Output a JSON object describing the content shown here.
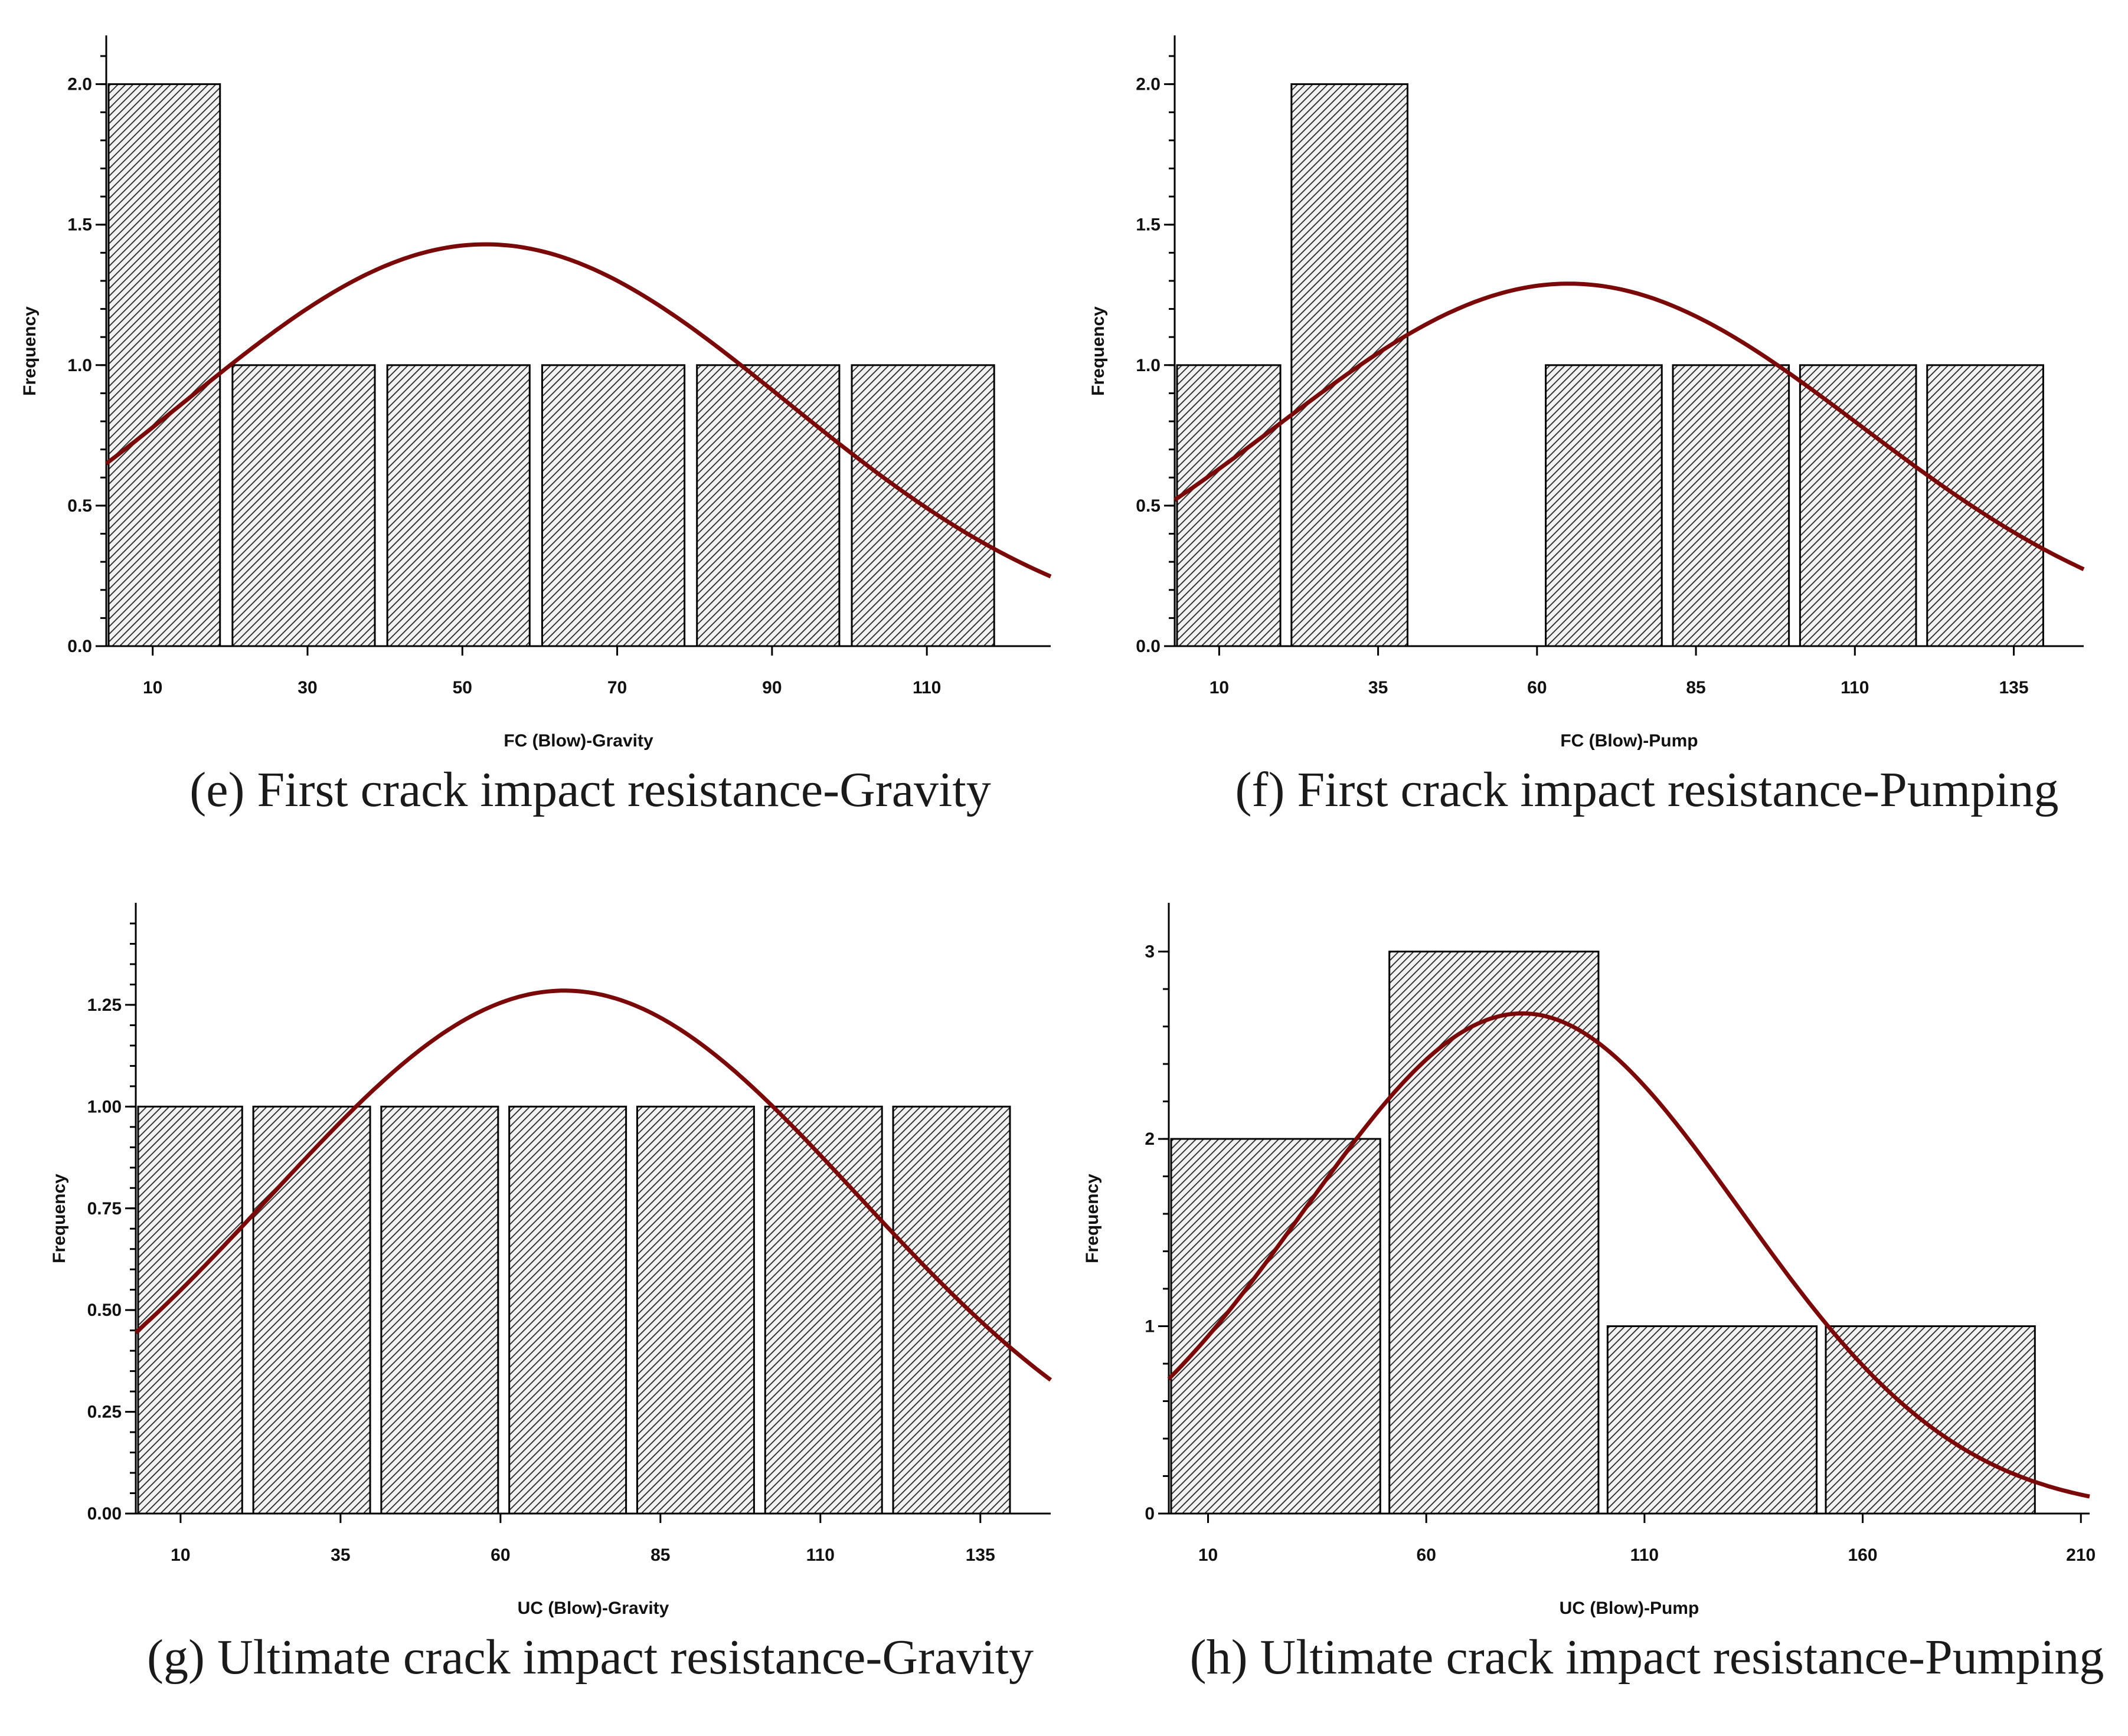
{
  "chart_data": [
    {
      "id": "e",
      "type": "bar",
      "caption": "(e) First crack impact resistance-Gravity",
      "xlabel": "FC (Blow)-Gravity",
      "ylabel": "Frequency",
      "xlim": [
        4,
        126
      ],
      "ylim": [
        0,
        2.1
      ],
      "xticks": [
        10,
        30,
        50,
        70,
        90,
        110
      ],
      "xtick_labels": [
        "10",
        "30",
        "50",
        "70",
        "90",
        "110"
      ],
      "yticks": [
        0,
        0.5,
        1,
        1.5,
        2
      ],
      "ytick_labels": [
        "0.0",
        "0.5",
        "1.0",
        "1.5",
        "2.0"
      ],
      "bins": [
        [
          4,
          19,
          2
        ],
        [
          20,
          39,
          1
        ],
        [
          40,
          59,
          1
        ],
        [
          60,
          79,
          1
        ],
        [
          80,
          99,
          1
        ],
        [
          100,
          119,
          1
        ]
      ],
      "curve": {
        "mean": 53,
        "sd": 39,
        "peak": 1.43
      }
    },
    {
      "id": "f",
      "type": "bar",
      "caption": "(f) First crack impact resistance-Pumping",
      "xlabel": "FC (Blow)-Pump",
      "ylabel": "Frequency",
      "xlim": [
        3,
        146
      ],
      "ylim": [
        0,
        2.1
      ],
      "xticks": [
        10,
        35,
        60,
        85,
        110,
        135
      ],
      "xtick_labels": [
        "10",
        "35",
        "60",
        "85",
        "110",
        "135"
      ],
      "yticks": [
        0,
        0.5,
        1,
        1.5,
        2
      ],
      "ytick_labels": [
        "0.0",
        "0.5",
        "1.0",
        "1.5",
        "2.0"
      ],
      "bins": [
        [
          3,
          20,
          1
        ],
        [
          21,
          40,
          2
        ],
        [
          61,
          80,
          1
        ],
        [
          81,
          100,
          1
        ],
        [
          101,
          120,
          1
        ],
        [
          121,
          140,
          1
        ]
      ],
      "curve": {
        "mean": 65,
        "sd": 46,
        "peak": 1.29
      }
    },
    {
      "id": "g",
      "type": "bar",
      "caption": "(g) Ultimate crack impact resistance-Gravity",
      "xlabel": "UC (Blow)-Gravity",
      "ylabel": "Frequency",
      "xlim": [
        3,
        146
      ],
      "ylim": [
        0,
        1.45
      ],
      "xticks": [
        10,
        35,
        60,
        85,
        110,
        135
      ],
      "xtick_labels": [
        "10",
        "35",
        "60",
        "85",
        "110",
        "135"
      ],
      "yticks": [
        0,
        0.25,
        0.5,
        0.75,
        1,
        1.25
      ],
      "ytick_labels": [
        "0.00",
        "0.25",
        "0.50",
        "0.75",
        "1.00",
        "1.25"
      ],
      "bins": [
        [
          3,
          20,
          1
        ],
        [
          21,
          40,
          1
        ],
        [
          41,
          60,
          1
        ],
        [
          61,
          80,
          1
        ],
        [
          81,
          100,
          1
        ],
        [
          101,
          120,
          1
        ],
        [
          121,
          140,
          1
        ]
      ],
      "curve": {
        "mean": 70,
        "sd": 46,
        "peak": 1.285
      }
    },
    {
      "id": "h",
      "type": "bar",
      "caption": "(h) Ultimate crack impact resistance-Pumping",
      "xlabel": "UC (Blow)-Pump",
      "ylabel": "Frequency",
      "xlim": [
        1,
        212
      ],
      "ylim": [
        0,
        3.15
      ],
      "xticks": [
        10,
        60,
        110,
        160,
        210
      ],
      "xtick_labels": [
        "10",
        "60",
        "110",
        "160",
        "210"
      ],
      "yticks": [
        0,
        1,
        2,
        3
      ],
      "ytick_labels": [
        "0",
        "1",
        "2",
        "3"
      ],
      "bins": [
        [
          1,
          50,
          2
        ],
        [
          51,
          100,
          3
        ],
        [
          101,
          150,
          1
        ],
        [
          151,
          200,
          1
        ]
      ],
      "curve": {
        "mean": 82,
        "sd": 50,
        "peak": 2.67
      }
    }
  ],
  "colors": {
    "curve": "#7a0a0a",
    "hatch": "#222222",
    "hatch_bg": "#f2f2f2"
  }
}
